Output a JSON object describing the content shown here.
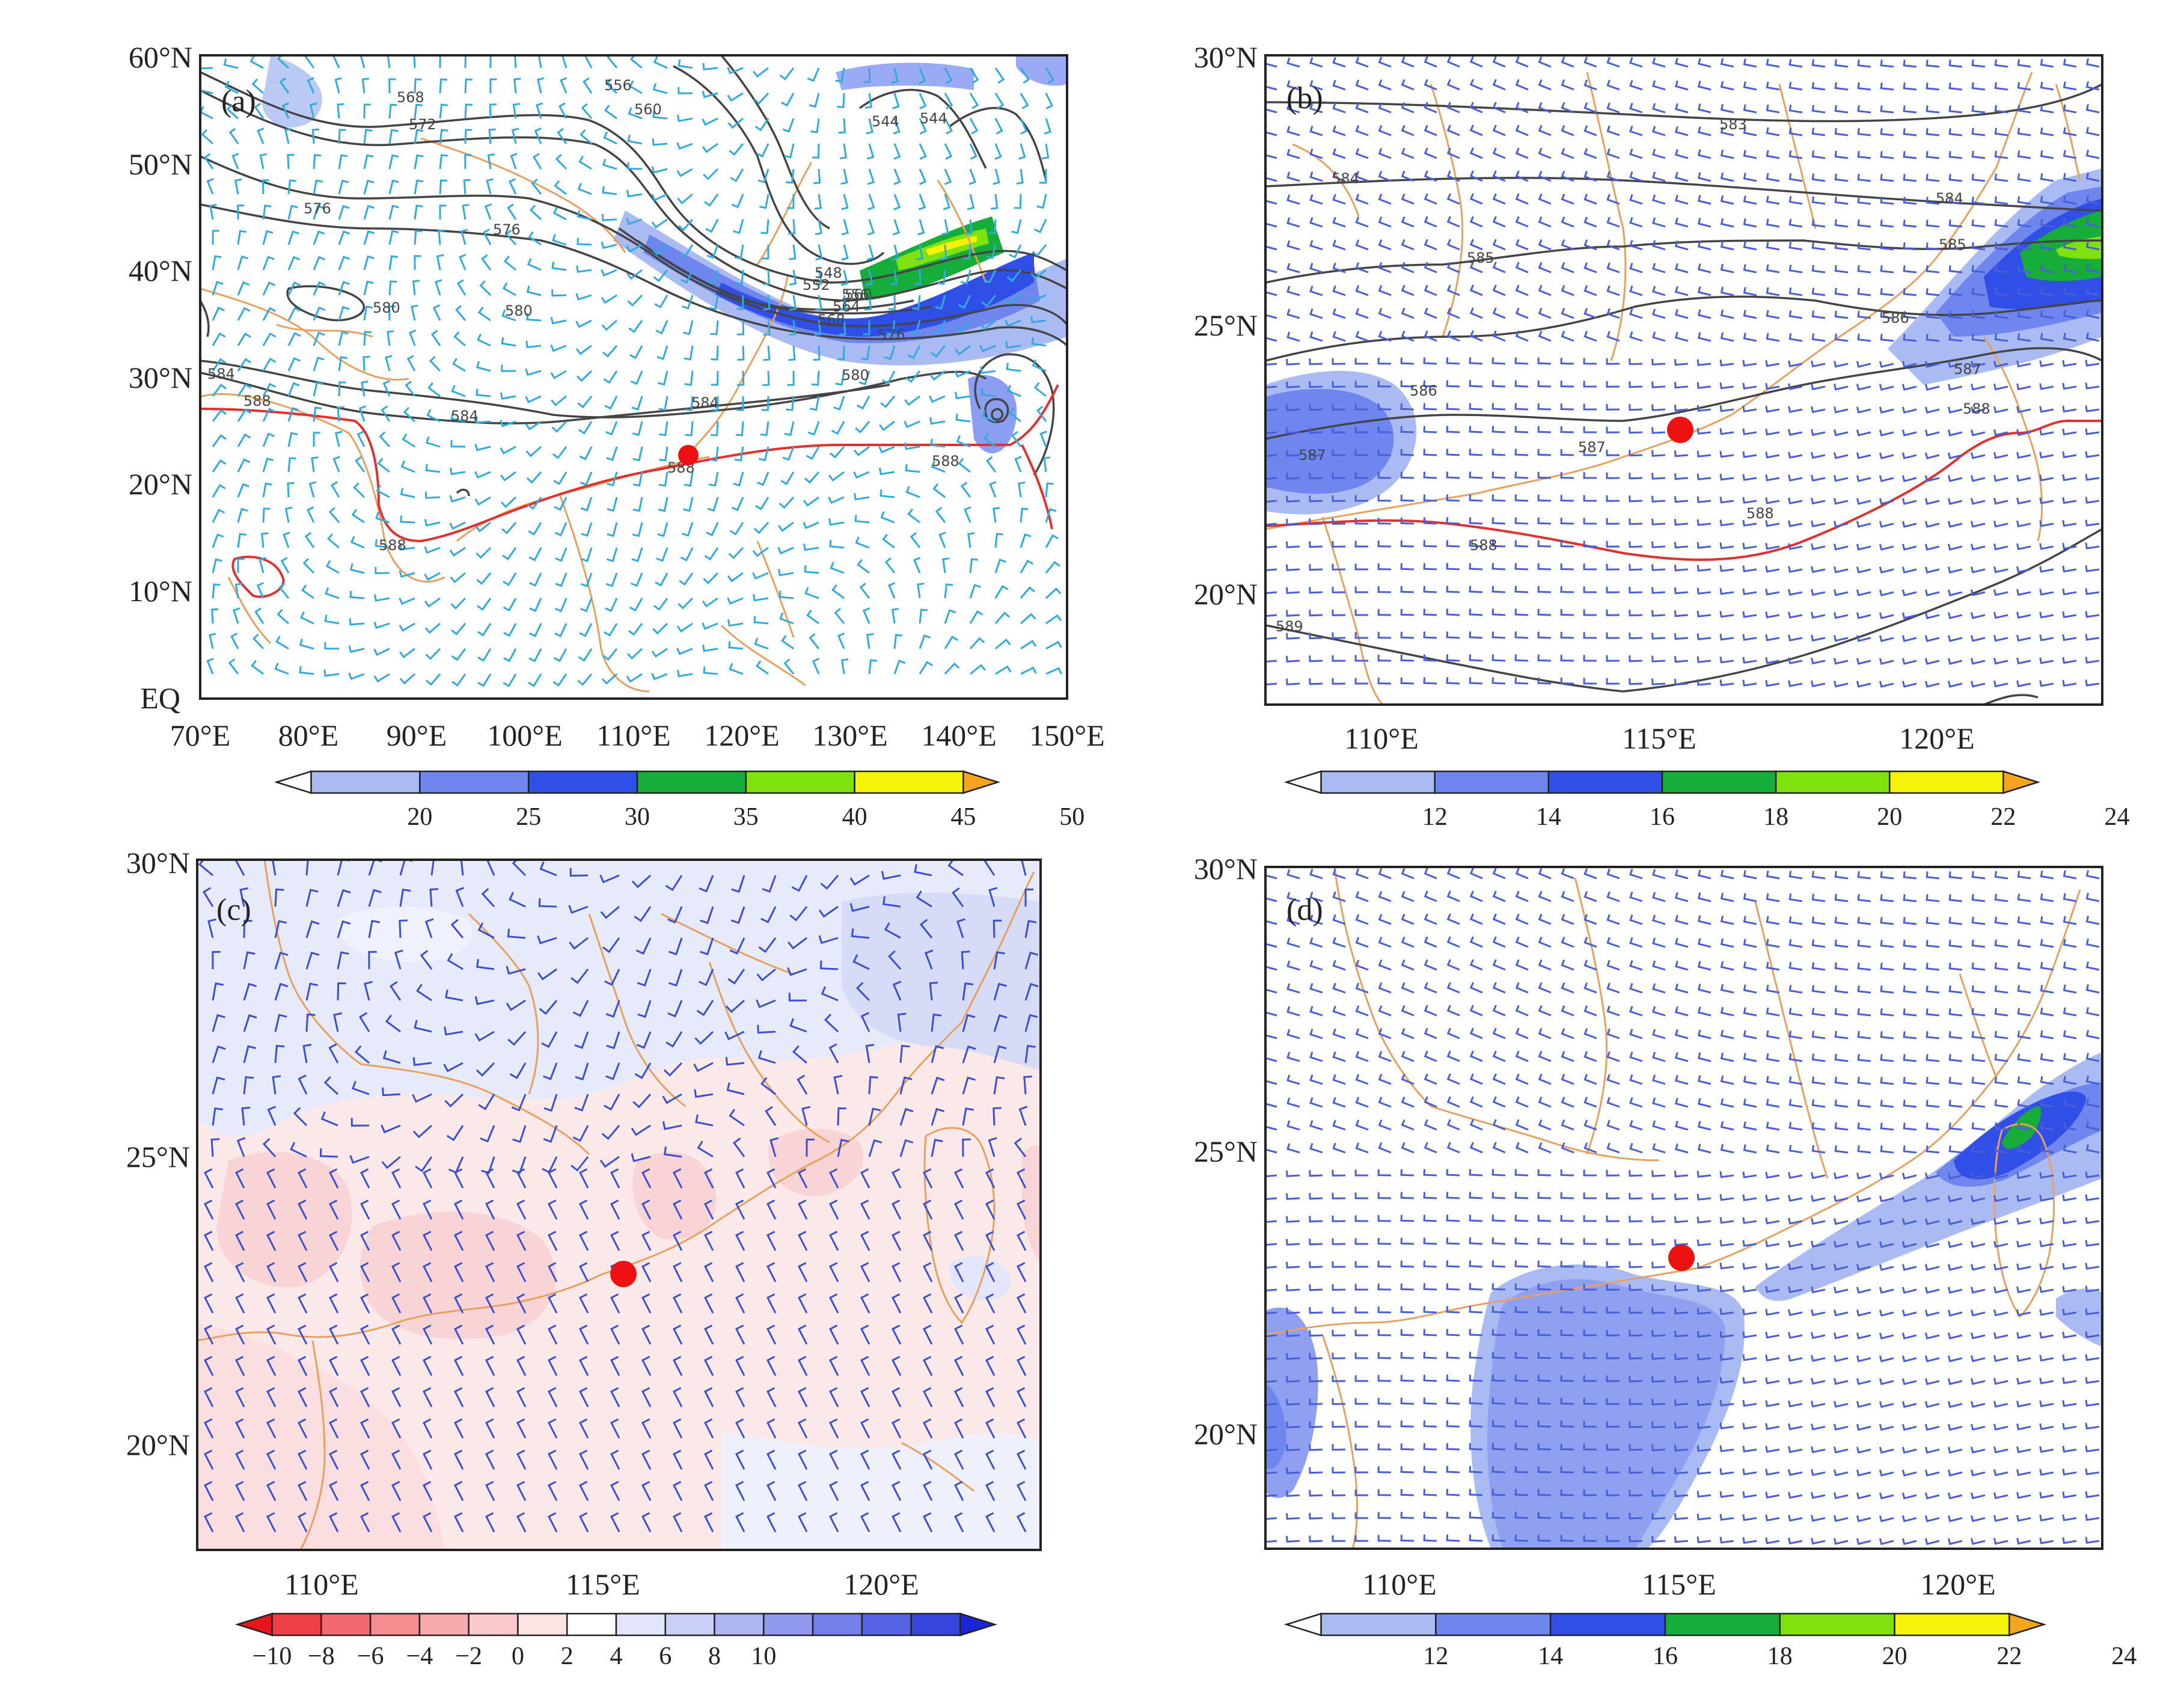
{
  "figure": {
    "station_marker_color": "#ee1111",
    "coast_color": "#e8a060",
    "contour_color": "#444444",
    "contour_588_color": "#e03030",
    "panels": [
      {
        "id": "a",
        "tag": "(a)",
        "barb_color": "#33aadd",
        "shading_bg": "#ffffff",
        "lat_labels": [
          "60°N",
          "50°N",
          "40°N",
          "30°N",
          "20°N",
          "10°N",
          "EQ"
        ],
        "lon_labels": [
          "70°E",
          "80°E",
          "90°E",
          "100°E",
          "110°E",
          "120°E",
          "130°E",
          "140°E",
          "150°E"
        ],
        "contour_labels": [
          "568",
          "572",
          "556",
          "560",
          "544",
          "544",
          "576",
          "576",
          "580",
          "580",
          "548",
          "552",
          "556",
          "560",
          "564",
          "568",
          "576",
          "580",
          "584",
          "584",
          "584",
          "588",
          "588",
          "588",
          "588"
        ],
        "colorbar": {
          "ticks": [
            "20",
            "25",
            "30",
            "35",
            "40",
            "45",
            "50"
          ],
          "colors": [
            "#ffffff",
            "#aabbf3",
            "#6f86ef",
            "#2f4fe6",
            "#16ad3a",
            "#7fe20f",
            "#f7f20a",
            "#f3a51e"
          ]
        }
      },
      {
        "id": "b",
        "tag": "(b)",
        "barb_color": "#4a5fd6",
        "shading_bg": "#ffffff",
        "lat_labels": [
          "30°N",
          "25°N",
          "20°N"
        ],
        "lon_labels": [
          "110°E",
          "115°E",
          "120°E"
        ],
        "contour_labels": [
          "583",
          "584",
          "584",
          "585",
          "585",
          "586",
          "586",
          "587",
          "587",
          "587",
          "588",
          "588",
          "588",
          "589"
        ],
        "colorbar": {
          "ticks": [
            "12",
            "14",
            "16",
            "18",
            "20",
            "22",
            "24"
          ],
          "colors": [
            "#ffffff",
            "#aabbf3",
            "#6f86ef",
            "#2f4fe6",
            "#16ad3a",
            "#7fe20f",
            "#f7f20a",
            "#f3a51e"
          ]
        }
      },
      {
        "id": "c",
        "tag": "(c)",
        "barb_color": "#3b4fd0",
        "shading_bg": "#fbe9e9",
        "lat_labels": [
          "30°N",
          "25°N",
          "20°N"
        ],
        "lon_labels": [
          "110°E",
          "115°E",
          "120°E"
        ],
        "colorbar": {
          "ticks": [
            "−10",
            "−8",
            "−6",
            "−4",
            "−2",
            "0",
            "2",
            "4",
            "6",
            "8",
            "10"
          ],
          "colors": [
            "#e8151f",
            "#ef4048",
            "#f26a70",
            "#f58c90",
            "#f8aaad",
            "#fbc8ca",
            "#fde3e4",
            "#ffffff",
            "#e3e6fb",
            "#c9cff7",
            "#adb5f2",
            "#9099ee",
            "#747fe9",
            "#5563e4",
            "#3745df",
            "#1a25d8"
          ]
        }
      },
      {
        "id": "d",
        "tag": "(d)",
        "barb_color": "#4a5fd6",
        "shading_bg": "#ffffff",
        "lat_labels": [
          "30°N",
          "25°N",
          "20°N"
        ],
        "lon_labels": [
          "110°E",
          "115°E",
          "120°E"
        ],
        "colorbar": {
          "ticks": [
            "12",
            "14",
            "16",
            "18",
            "20",
            "22",
            "24"
          ],
          "colors": [
            "#ffffff",
            "#aabbf3",
            "#6f86ef",
            "#2f4fe6",
            "#16ad3a",
            "#7fe20f",
            "#f7f20a",
            "#f3a51e"
          ]
        }
      }
    ]
  }
}
